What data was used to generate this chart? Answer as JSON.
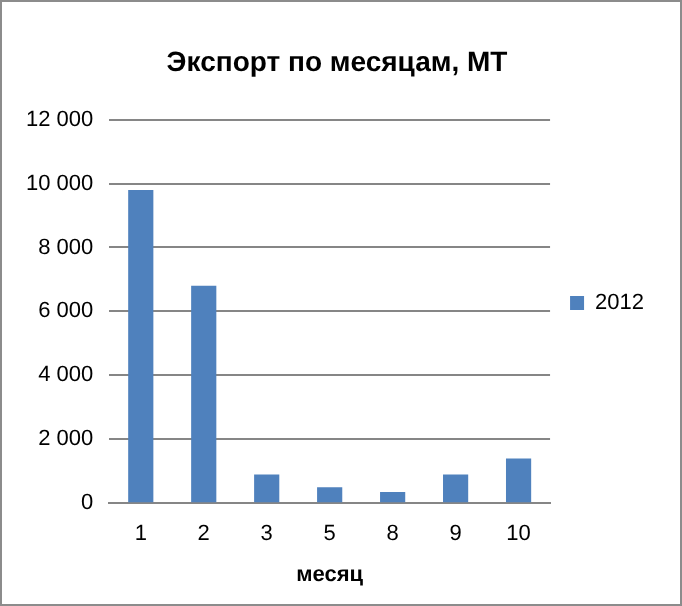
{
  "chart_data": {
    "type": "bar",
    "title": "Экспорт по месяцам, МТ",
    "xlabel": "месяц",
    "categories": [
      "1",
      "2",
      "3",
      "5",
      "8",
      "9",
      "10"
    ],
    "series": [
      {
        "name": "2012",
        "color": "#4f81bd",
        "values": [
          9800,
          6800,
          900,
          500,
          350,
          900,
          1400
        ]
      }
    ],
    "ylim": [
      0,
      12000
    ],
    "yticks": [
      {
        "value": 0,
        "label": "0"
      },
      {
        "value": 2000,
        "label": "2 000"
      },
      {
        "value": 4000,
        "label": "4 000"
      },
      {
        "value": 6000,
        "label": "6 000"
      },
      {
        "value": 8000,
        "label": "8 000"
      },
      {
        "value": 10000,
        "label": "10 000"
      },
      {
        "value": 12000,
        "label": "12 000"
      }
    ],
    "grid": "y",
    "legend": "right"
  }
}
